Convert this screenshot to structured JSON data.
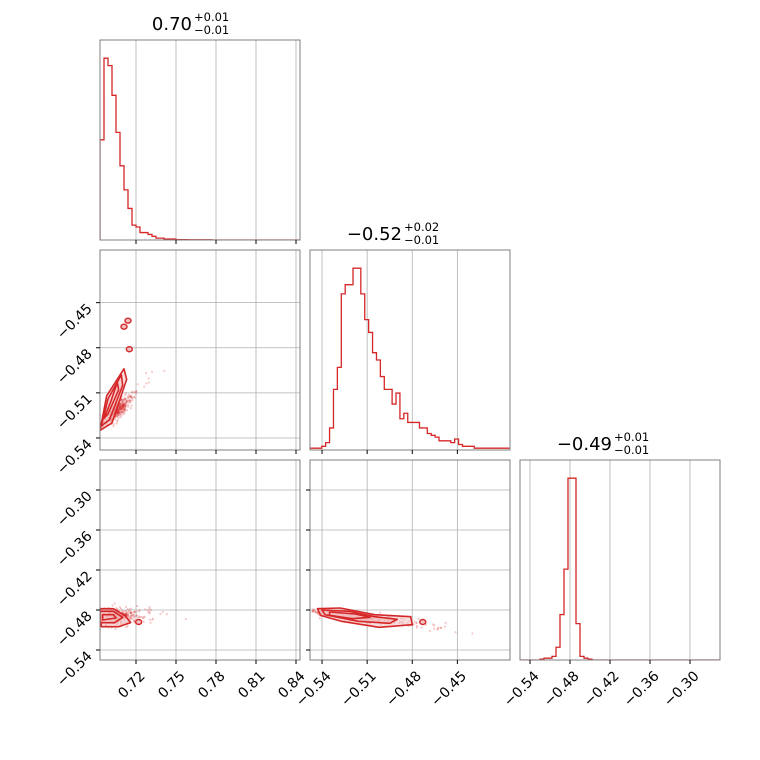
{
  "chart_data": {
    "type": "corner",
    "color": "#d62728",
    "fill_color": "#f3c4c5",
    "grid": true,
    "parameters": [
      {
        "range": [
          0.693,
          0.843
        ],
        "ticks": [
          0.72,
          0.75,
          0.78,
          0.81,
          0.84
        ],
        "tick_labels": [
          "0.72",
          "0.75",
          "0.78",
          "0.81",
          "0.84"
        ],
        "title": {
          "value": "0.70",
          "upper": "+0.01",
          "lower": "−0.01"
        }
      },
      {
        "range": [
          -0.548,
          -0.415
        ],
        "ticks": [
          -0.54,
          -0.51,
          -0.48,
          -0.45
        ],
        "tick_labels": [
          "−0.54",
          "−0.51",
          "−0.48",
          "−0.45"
        ],
        "title": {
          "value": "−0.52",
          "upper": "+0.02",
          "lower": "−0.01"
        }
      },
      {
        "range": [
          -0.555,
          -0.255
        ],
        "ticks": [
          -0.54,
          -0.48,
          -0.42,
          -0.36,
          -0.3
        ],
        "tick_labels": [
          "−0.54",
          "−0.48",
          "−0.42",
          "−0.36",
          "−0.30"
        ],
        "title": {
          "value": "−0.49",
          "upper": "+0.01",
          "lower": "−0.01"
        }
      }
    ],
    "histograms": [
      {
        "param": 0,
        "bin_width": 0.003,
        "x": [
          0.693,
          0.696,
          0.699,
          0.702,
          0.705,
          0.708,
          0.711,
          0.714,
          0.717,
          0.72,
          0.723,
          0.726,
          0.729,
          0.732,
          0.735,
          0.738,
          0.741,
          0.744,
          0.747,
          0.75,
          0.753,
          0.756,
          0.759,
          0.762,
          0.765,
          0.768,
          0.771,
          0.774,
          0.777,
          0.78,
          0.783,
          0.786,
          0.789,
          0.792,
          0.795,
          0.798,
          0.801,
          0.804,
          0.807,
          0.81,
          0.813,
          0.816,
          0.819,
          0.822,
          0.825,
          0.828,
          0.831,
          0.834,
          0.837,
          0.84
        ],
        "counts": [
          54,
          98,
          94,
          78,
          58,
          40,
          27,
          17,
          8,
          7,
          4,
          4,
          3,
          2,
          1,
          1,
          0.5,
          0.5,
          0.5,
          0.2,
          0.2,
          0.2,
          0.1,
          0.1,
          0.1,
          0.1,
          0.1,
          0.1,
          0,
          0,
          0,
          0,
          0,
          0,
          0,
          0,
          0,
          0,
          0,
          0,
          0,
          0,
          0,
          0,
          0,
          0,
          0,
          0,
          0,
          0
        ]
      },
      {
        "param": 1,
        "bin_width": 0.0026,
        "x": [
          -0.548,
          -0.5454,
          -0.5428,
          -0.5402,
          -0.5376,
          -0.535,
          -0.5324,
          -0.5298,
          -0.5272,
          -0.5246,
          -0.522,
          -0.5194,
          -0.5168,
          -0.5142,
          -0.5116,
          -0.509,
          -0.5064,
          -0.5038,
          -0.5012,
          -0.4986,
          -0.496,
          -0.4934,
          -0.4908,
          -0.4882,
          -0.4856,
          -0.483,
          -0.4804,
          -0.4778,
          -0.4752,
          -0.4726,
          -0.47,
          -0.4674,
          -0.4648,
          -0.4622,
          -0.4596,
          -0.457,
          -0.4544,
          -0.4518,
          -0.4492,
          -0.4466,
          -0.444,
          -0.4414,
          -0.4388,
          -0.4362,
          -0.4336,
          -0.431,
          -0.4284,
          -0.4258,
          -0.4232,
          -0.4206,
          -0.418
        ],
        "counts": [
          1,
          1,
          1,
          2,
          4,
          12,
          33,
          45,
          85,
          90,
          90,
          99,
          99,
          85,
          71,
          64,
          53,
          49,
          40,
          33,
          33,
          25,
          31,
          17,
          20,
          15,
          15,
          15,
          12,
          12,
          9,
          8,
          7,
          5,
          5,
          5,
          4,
          6,
          3,
          2,
          2,
          2,
          1,
          1,
          1,
          1,
          1,
          1,
          1,
          1,
          1
        ]
      },
      {
        "param": 2,
        "bin_width": 0.006,
        "x": [
          -0.555,
          -0.549,
          -0.543,
          -0.537,
          -0.531,
          -0.525,
          -0.519,
          -0.513,
          -0.507,
          -0.501,
          -0.495,
          -0.489,
          -0.483,
          -0.477,
          -0.471,
          -0.465,
          -0.459,
          -0.453,
          -0.447,
          -0.441,
          -0.435,
          -0.429,
          -0.423,
          -0.417,
          -0.411,
          -0.405,
          -0.399,
          -0.393,
          -0.387,
          -0.381,
          -0.375,
          -0.369,
          -0.363,
          -0.357,
          -0.351,
          -0.345,
          -0.339,
          -0.333,
          -0.327,
          -0.321,
          -0.315,
          -0.309,
          -0.303,
          -0.297,
          -0.291,
          -0.285,
          -0.279,
          -0.273,
          -0.267,
          -0.261
        ],
        "counts": [
          0,
          0,
          0,
          0,
          0,
          0.5,
          1,
          1,
          2,
          7,
          25,
          50,
          100,
          100,
          20,
          2,
          1,
          0.5,
          0,
          0,
          0,
          0,
          0,
          0,
          0,
          0,
          0,
          0,
          0,
          0,
          0,
          0,
          0,
          0,
          0,
          0,
          0,
          0,
          0,
          0,
          0,
          0,
          0,
          0,
          0,
          0,
          0,
          0,
          0,
          0
        ]
      }
    ],
    "joint": [
      {
        "x_param": 0,
        "y_param": 1,
        "center": [
          0.704,
          -0.523
        ],
        "slope": 0.86,
        "sd_along": 0.0062,
        "sd_across": 0.0022,
        "contours": [
          [
            [
              0.693,
              -0.535
            ],
            [
              0.698,
              -0.512
            ],
            [
              0.711,
              -0.494
            ],
            [
              0.713,
              -0.501
            ],
            [
              0.702,
              -0.53
            ]
          ],
          [
            [
              0.694,
              -0.532
            ],
            [
              0.699,
              -0.514
            ],
            [
              0.709,
              -0.498
            ],
            [
              0.71,
              -0.505
            ],
            [
              0.7,
              -0.528
            ]
          ],
          [
            [
              0.696,
              -0.527
            ],
            [
              0.701,
              -0.516
            ],
            [
              0.706,
              -0.503
            ],
            [
              0.707,
              -0.508
            ],
            [
              0.699,
              -0.524
            ]
          ]
        ],
        "islands": [
          [
            0.715,
            -0.481
          ],
          [
            0.711,
            -0.466
          ],
          [
            0.714,
            -0.462
          ]
        ]
      },
      {
        "x_param": 0,
        "y_param": 2,
        "center": [
          0.702,
          -0.489
        ],
        "slope": 0.0,
        "sd_along": 0.008,
        "sd_across": 0.006,
        "contours": [
          [
            [
              0.693,
              -0.478
            ],
            [
              0.703,
              -0.478
            ],
            [
              0.712,
              -0.489
            ],
            [
              0.716,
              -0.499
            ],
            [
              0.707,
              -0.505
            ],
            [
              0.694,
              -0.505
            ]
          ],
          [
            [
              0.693,
              -0.482
            ],
            [
              0.703,
              -0.482
            ],
            [
              0.71,
              -0.491
            ],
            [
              0.704,
              -0.499
            ],
            [
              0.693,
              -0.499
            ]
          ],
          [
            [
              0.695,
              -0.487
            ],
            [
              0.703,
              -0.487
            ],
            [
              0.705,
              -0.492
            ],
            [
              0.695,
              -0.495
            ]
          ]
        ],
        "islands": [
          [
            0.722,
            -0.498
          ]
        ]
      },
      {
        "x_param": 1,
        "y_param": 2,
        "center": [
          -0.522,
          -0.489
        ],
        "slope": -0.28,
        "sd_along": 0.014,
        "sd_across": 0.003,
        "contours": [
          [
            [
              -0.543,
              -0.478
            ],
            [
              -0.528,
              -0.477
            ],
            [
              -0.505,
              -0.487
            ],
            [
              -0.481,
              -0.49
            ],
            [
              -0.48,
              -0.502
            ],
            [
              -0.502,
              -0.506
            ],
            [
              -0.527,
              -0.497
            ],
            [
              -0.541,
              -0.488
            ]
          ],
          [
            [
              -0.54,
              -0.48
            ],
            [
              -0.522,
              -0.482
            ],
            [
              -0.505,
              -0.49
            ],
            [
              -0.49,
              -0.494
            ],
            [
              -0.495,
              -0.5
            ],
            [
              -0.516,
              -0.497
            ],
            [
              -0.538,
              -0.487
            ]
          ],
          [
            [
              -0.535,
              -0.483
            ],
            [
              -0.518,
              -0.486
            ],
            [
              -0.508,
              -0.491
            ],
            [
              -0.52,
              -0.493
            ],
            [
              -0.535,
              -0.488
            ]
          ]
        ],
        "islands": [
          [
            -0.473,
            -0.498
          ]
        ]
      }
    ]
  }
}
